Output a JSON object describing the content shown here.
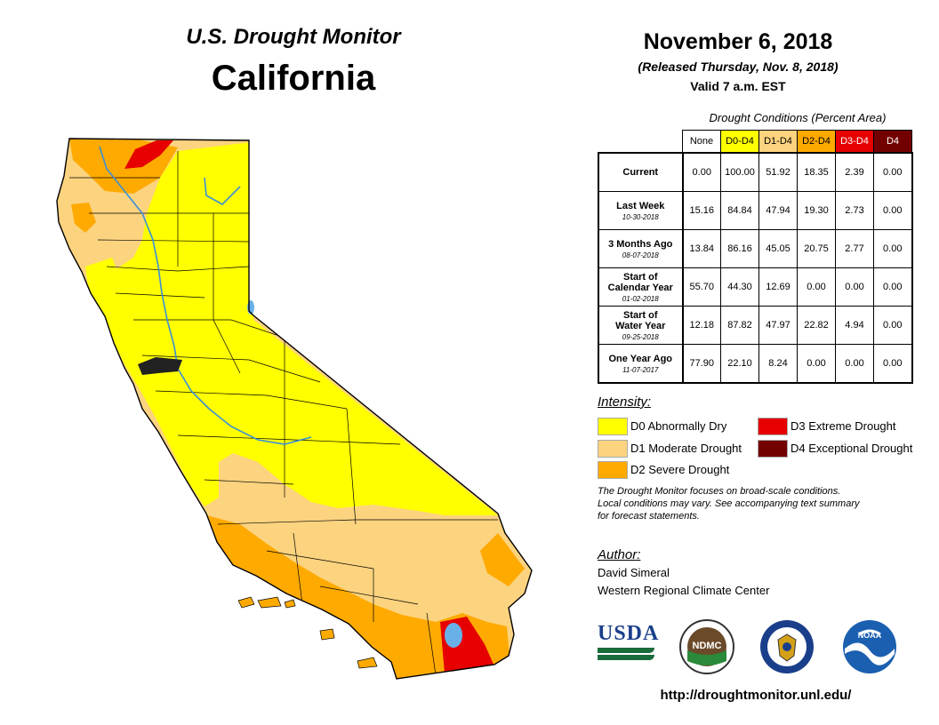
{
  "header": {
    "subtitle": "U.S. Drought Monitor",
    "state": "California",
    "date": "November 6, 2018",
    "released": "(Released Thursday, Nov. 8, 2018)",
    "valid": "Valid 7 a.m. EST"
  },
  "table": {
    "caption": "Drought Conditions (Percent Area)",
    "columns": [
      {
        "label": "None",
        "bg": "#ffffff",
        "fg": "#000000"
      },
      {
        "label": "D0-D4",
        "bg": "#ffff00",
        "fg": "#000000"
      },
      {
        "label": "D1-D4",
        "bg": "#fcd37f",
        "fg": "#000000"
      },
      {
        "label": "D2-D4",
        "bg": "#ffaa00",
        "fg": "#000000"
      },
      {
        "label": "D3-D4",
        "bg": "#e60000",
        "fg": "#ffffff"
      },
      {
        "label": "D4",
        "bg": "#730000",
        "fg": "#ffffff"
      }
    ],
    "rows": [
      {
        "label": [
          "Current"
        ],
        "date": "",
        "values": [
          "0.00",
          "100.00",
          "51.92",
          "18.35",
          "2.39",
          "0.00"
        ]
      },
      {
        "label": [
          "Last Week"
        ],
        "date": "10-30-2018",
        "values": [
          "15.16",
          "84.84",
          "47.94",
          "19.30",
          "2.73",
          "0.00"
        ]
      },
      {
        "label": [
          "3 Months Ago"
        ],
        "date": "08-07-2018",
        "values": [
          "13.84",
          "86.16",
          "45.05",
          "20.75",
          "2.77",
          "0.00"
        ]
      },
      {
        "label": [
          "Start of",
          "Calendar Year"
        ],
        "date": "01-02-2018",
        "values": [
          "55.70",
          "44.30",
          "12.69",
          "0.00",
          "0.00",
          "0.00"
        ]
      },
      {
        "label": [
          "Start of",
          "Water Year"
        ],
        "date": "09-25-2018",
        "values": [
          "12.18",
          "87.82",
          "47.97",
          "22.82",
          "4.94",
          "0.00"
        ]
      },
      {
        "label": [
          "One Year Ago"
        ],
        "date": "11-07-2017",
        "values": [
          "77.90",
          "22.10",
          "8.24",
          "0.00",
          "0.00",
          "0.00"
        ]
      }
    ]
  },
  "legend": {
    "title": "Intensity:",
    "items": [
      {
        "label": "D0 Abnormally Dry",
        "color": "#ffff00"
      },
      {
        "label": "D1 Moderate Drought",
        "color": "#fcd37f"
      },
      {
        "label": "D2 Severe Drought",
        "color": "#ffaa00"
      },
      {
        "label": "D3 Extreme Drought",
        "color": "#e60000"
      },
      {
        "label": "D4 Exceptional Drought",
        "color": "#730000"
      }
    ]
  },
  "disclaimer": {
    "line1": "The Drought Monitor focuses on broad-scale conditions.",
    "line2": "Local conditions may vary. See accompanying text summary",
    "line3": "for forecast statements."
  },
  "author": {
    "label": "Author:",
    "name": "David Simeral",
    "org": "Western Regional Climate Center"
  },
  "logos": {
    "usda": "USDA",
    "ndmc": "NDMC",
    "noaa": "NOAA"
  },
  "map": {
    "water_color": "#6ab0e8",
    "river_color": "#3a8fd8",
    "border_color": "#000000"
  },
  "url": "http://droughtmonitor.unl.edu/"
}
